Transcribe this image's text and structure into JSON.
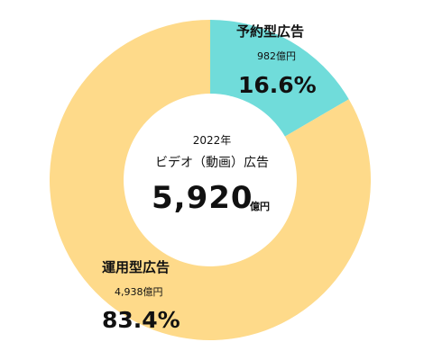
{
  "chart_data": {
    "type": "pie",
    "categories": [
      "予約型広告",
      "運用型広告"
    ],
    "values": [
      982,
      4938
    ],
    "percent_labels": [
      "16.6%",
      "83.4%"
    ],
    "amount_labels": [
      "982億円",
      "4,938億円"
    ],
    "colors": [
      "#70DCDA",
      "#FEDA8A"
    ],
    "center": {
      "year": "2022年",
      "category": "ビデオ（動画）広告",
      "total": "5,920",
      "unit": "億円"
    }
  }
}
